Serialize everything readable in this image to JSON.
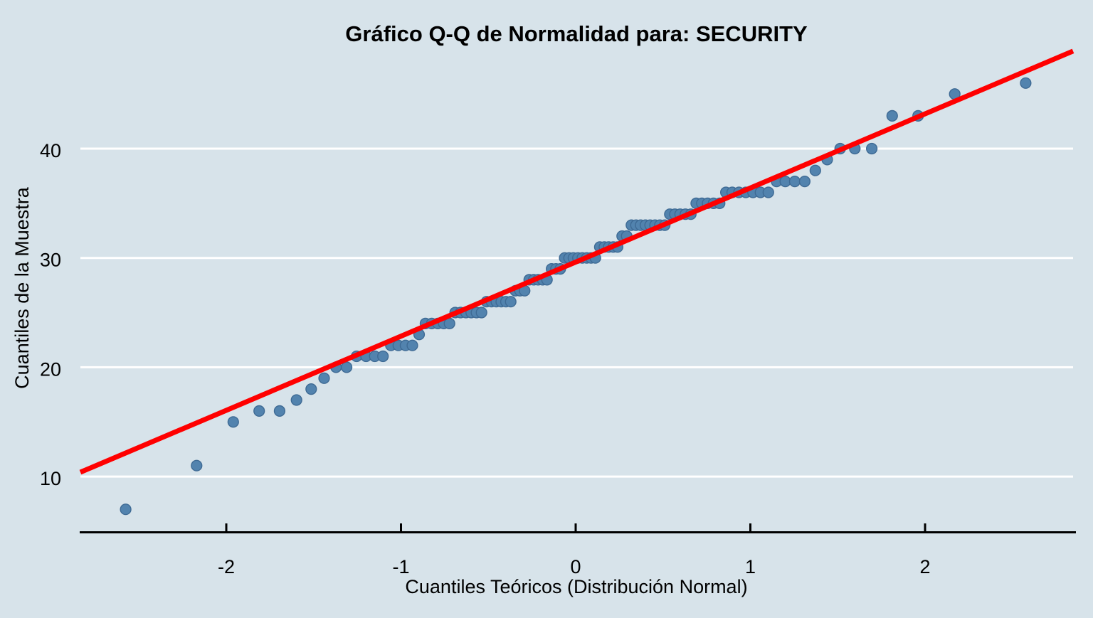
{
  "title": "Gráfico Q-Q de Normalidad para: SECURITY",
  "chart_data": {
    "type": "scatter",
    "title": "Gráfico Q-Q de Normalidad para: SECURITY",
    "xlabel": "Cuantiles Teóricos (Distribución Normal)",
    "ylabel": "Cuantiles de la Muestra",
    "x_ticks": [
      -2,
      -1,
      0,
      1,
      2
    ],
    "y_ticks": [
      10,
      20,
      30,
      40
    ],
    "xlim": [
      -2.84,
      2.85
    ],
    "ylim": [
      4.9,
      53.6
    ],
    "grid": "horizontal white gridlines only",
    "legend": "none",
    "series": [
      {
        "name": "sample-vs-theoretical-quantiles",
        "type": "points",
        "x": [
          -2.576,
          -2.17,
          -1.96,
          -1.812,
          -1.695,
          -1.598,
          -1.514,
          -1.44,
          -1.372,
          -1.311,
          -1.254,
          -1.2,
          -1.15,
          -1.103,
          -1.058,
          -1.015,
          -0.974,
          -0.935,
          -0.896,
          -0.86,
          -0.824,
          -0.789,
          -0.755,
          -0.722,
          -0.69,
          -0.659,
          -0.628,
          -0.598,
          -0.568,
          -0.539,
          -0.51,
          -0.482,
          -0.454,
          -0.426,
          -0.399,
          -0.372,
          -0.345,
          -0.319,
          -0.292,
          -0.266,
          -0.24,
          -0.215,
          -0.189,
          -0.164,
          -0.138,
          -0.113,
          -0.088,
          -0.063,
          -0.038,
          -0.013,
          0.013,
          0.038,
          0.063,
          0.088,
          0.113,
          0.138,
          0.164,
          0.189,
          0.215,
          0.24,
          0.266,
          0.292,
          0.319,
          0.345,
          0.372,
          0.399,
          0.426,
          0.454,
          0.482,
          0.51,
          0.539,
          0.568,
          0.598,
          0.628,
          0.659,
          0.69,
          0.722,
          0.755,
          0.789,
          0.824,
          0.86,
          0.896,
          0.935,
          0.974,
          1.015,
          1.058,
          1.103,
          1.15,
          1.2,
          1.254,
          1.311,
          1.372,
          1.44,
          1.514,
          1.598,
          1.695,
          1.812,
          1.96,
          2.17,
          2.576
        ],
        "y": [
          7,
          11,
          15,
          16,
          16,
          17,
          18,
          19,
          20,
          20,
          21,
          21,
          21,
          21,
          22,
          22,
          22,
          22,
          23,
          24,
          24,
          24,
          24,
          24,
          25,
          25,
          25,
          25,
          25,
          25,
          26,
          26,
          26,
          26,
          26,
          26,
          27,
          27,
          27,
          28,
          28,
          28,
          28,
          28,
          29,
          29,
          29,
          30,
          30,
          30,
          30,
          30,
          30,
          30,
          30,
          31,
          31,
          31,
          31,
          31,
          32,
          32,
          33,
          33,
          33,
          33,
          33,
          33,
          33,
          33,
          34,
          34,
          34,
          34,
          34,
          35,
          35,
          35,
          35,
          35,
          36,
          36,
          36,
          36,
          36,
          36,
          36,
          37,
          37,
          37,
          37,
          38,
          39,
          40,
          40,
          40,
          43,
          43,
          45,
          46
        ]
      },
      {
        "name": "normal-reference-line",
        "type": "line",
        "intercept": 29.62,
        "slope": 6.78
      }
    ],
    "colors": {
      "background": "#d7e3ea",
      "point_fill": "#5283ae",
      "point_edge": "#3e6a94",
      "line": "#ff0000",
      "grid": "#ffffff",
      "axis": "#000000",
      "text": "#000000"
    }
  }
}
